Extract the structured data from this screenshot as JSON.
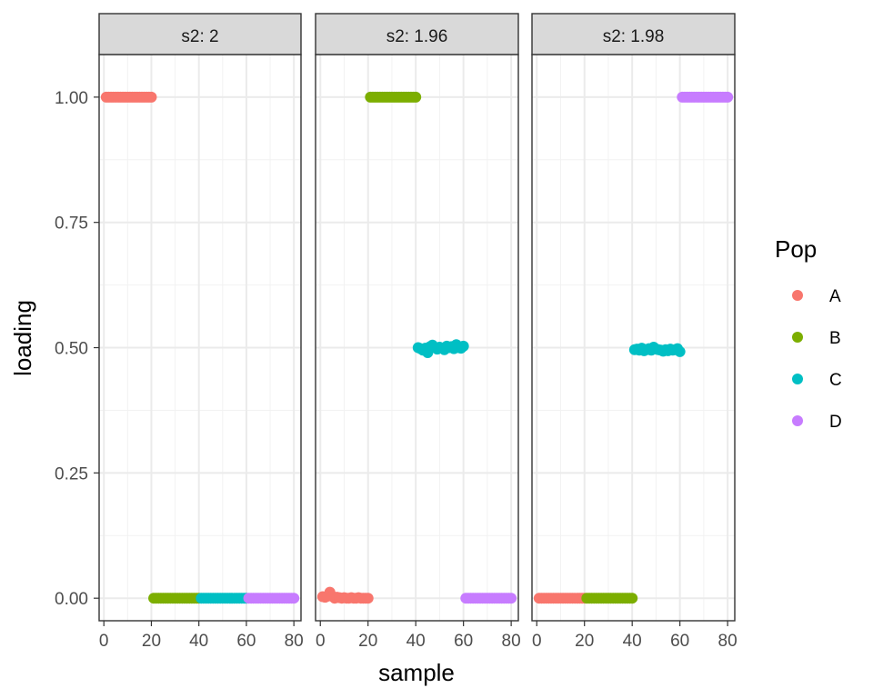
{
  "chart_data": {
    "type": "scatter",
    "xlabel": "sample",
    "ylabel": "loading",
    "xlim": [
      -2,
      83
    ],
    "ylim": [
      -0.045,
      1.085
    ],
    "x_ticks": [
      0,
      20,
      40,
      60,
      80
    ],
    "x_tick_labels": [
      "0",
      "20",
      "40",
      "60",
      "80"
    ],
    "y_ticks": [
      0,
      0.25,
      0.5,
      0.75,
      1
    ],
    "y_tick_labels": [
      "0.00",
      "0.25",
      "0.50",
      "0.75",
      "1.00"
    ],
    "legend": {
      "title": "Pop",
      "position": "right",
      "entries": [
        {
          "label": "A",
          "color": "#F8766D"
        },
        {
          "label": "B",
          "color": "#7CAE00"
        },
        {
          "label": "C",
          "color": "#00BFC4"
        },
        {
          "label": "D",
          "color": "#C77CFF"
        }
      ]
    },
    "facets": [
      {
        "strip": "s2: 2",
        "series": [
          {
            "name": "A",
            "x": [
              1,
              20
            ],
            "y": [
              1.0,
              1.0
            ]
          },
          {
            "name": "B",
            "x": [
              21,
              40
            ],
            "y": [
              0.0,
              0.0
            ]
          },
          {
            "name": "C",
            "x": [
              41,
              60
            ],
            "y": [
              0.0,
              0.0
            ]
          },
          {
            "name": "D",
            "x": [
              61,
              80
            ],
            "y": [
              0.0,
              0.0
            ]
          }
        ]
      },
      {
        "strip": "s2: 1.96",
        "series": [
          {
            "name": "A",
            "x": [
              1,
              2,
              3,
              4,
              5,
              6,
              7,
              8,
              9,
              10,
              11,
              12,
              13,
              14,
              15,
              16,
              17,
              18,
              19,
              20
            ],
            "y": [
              0.003,
              0.002,
              0.004,
              0.012,
              0.004,
              0.0,
              0.002,
              0.001,
              0.0,
              0.001,
              0.0,
              0.0,
              0.001,
              0.0,
              0.0,
              0.001,
              0.0,
              0.0,
              0.0,
              0.0
            ]
          },
          {
            "name": "B",
            "x": [
              21,
              40
            ],
            "y": [
              1.0,
              1.0
            ]
          },
          {
            "name": "C",
            "x": [
              41,
              42,
              43,
              44,
              45,
              46,
              47,
              48,
              49,
              50,
              51,
              52,
              53,
              54,
              55,
              56,
              57,
              58,
              59,
              60
            ],
            "y": [
              0.5,
              0.498,
              0.495,
              0.499,
              0.49,
              0.502,
              0.505,
              0.5,
              0.497,
              0.501,
              0.499,
              0.496,
              0.503,
              0.5,
              0.502,
              0.498,
              0.506,
              0.5,
              0.499,
              0.503
            ]
          },
          {
            "name": "D",
            "x": [
              61,
              80
            ],
            "y": [
              0.0,
              0.0
            ]
          }
        ]
      },
      {
        "strip": "s2: 1.98",
        "series": [
          {
            "name": "A",
            "x": [
              1,
              20
            ],
            "y": [
              0.0,
              0.0
            ]
          },
          {
            "name": "B",
            "x": [
              21,
              40
            ],
            "y": [
              0.0,
              0.0
            ]
          },
          {
            "name": "C",
            "x": [
              41,
              42,
              43,
              44,
              45,
              46,
              47,
              48,
              49,
              50,
              51,
              52,
              53,
              54,
              55,
              56,
              57,
              58,
              59,
              60
            ],
            "y": [
              0.496,
              0.497,
              0.495,
              0.499,
              0.494,
              0.496,
              0.498,
              0.495,
              0.501,
              0.497,
              0.496,
              0.495,
              0.493,
              0.496,
              0.494,
              0.497,
              0.495,
              0.496,
              0.498,
              0.492
            ]
          },
          {
            "name": "D",
            "x": [
              61,
              80
            ],
            "y": [
              1.0,
              1.0
            ]
          }
        ]
      }
    ]
  }
}
